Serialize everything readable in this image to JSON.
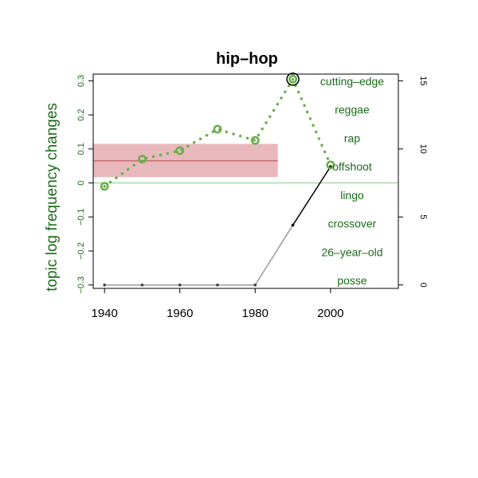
{
  "chart_data": {
    "type": "line",
    "title": "hip–hop",
    "ylabel": "topic log frequency changes",
    "xlabel": "",
    "x_ticks": [
      "1940",
      "1960",
      "1980",
      "2000"
    ],
    "y_ticks": [
      "−0.3",
      "−0.2",
      "−0.1",
      "0",
      "0.1",
      "0.2",
      "0.3"
    ],
    "y2_ticks": [
      "0",
      "5",
      "10",
      "15"
    ],
    "xlim": [
      1937,
      2018
    ],
    "ylim": [
      -0.31,
      0.32
    ],
    "y2lim": [
      0,
      15
    ],
    "series": [
      {
        "kind": "topic-change",
        "color": "#6ab04c",
        "points": [
          [
            1940,
            -0.01
          ],
          [
            1950,
            0.07
          ],
          [
            1960,
            0.095
          ],
          [
            1970,
            0.158
          ],
          [
            1980,
            0.125
          ],
          [
            1990,
            0.305
          ],
          [
            2000,
            0.053
          ]
        ],
        "highlight_x": 1990
      },
      {
        "kind": "word-count",
        "color_before": "#999999",
        "color_after": "#000000",
        "points": [
          [
            1940,
            0
          ],
          [
            1950,
            0
          ],
          [
            1960,
            0
          ],
          [
            1970,
            0
          ],
          [
            1980,
            0
          ],
          [
            1990,
            4.4
          ],
          [
            2000,
            8.7
          ]
        ]
      }
    ],
    "reference_band": {
      "mean": 0.065,
      "low": 0.017,
      "high": 0.115,
      "x_end": 1986,
      "fill": "#e9b8bc",
      "line": "#c05a5a"
    },
    "zero_line_color": "#9fd49a",
    "word_labels": [
      "cutting–edge",
      "reggae",
      "rap",
      "offshoot",
      "lingo",
      "crossover",
      "26–year–old",
      "posse"
    ],
    "grid": false
  }
}
